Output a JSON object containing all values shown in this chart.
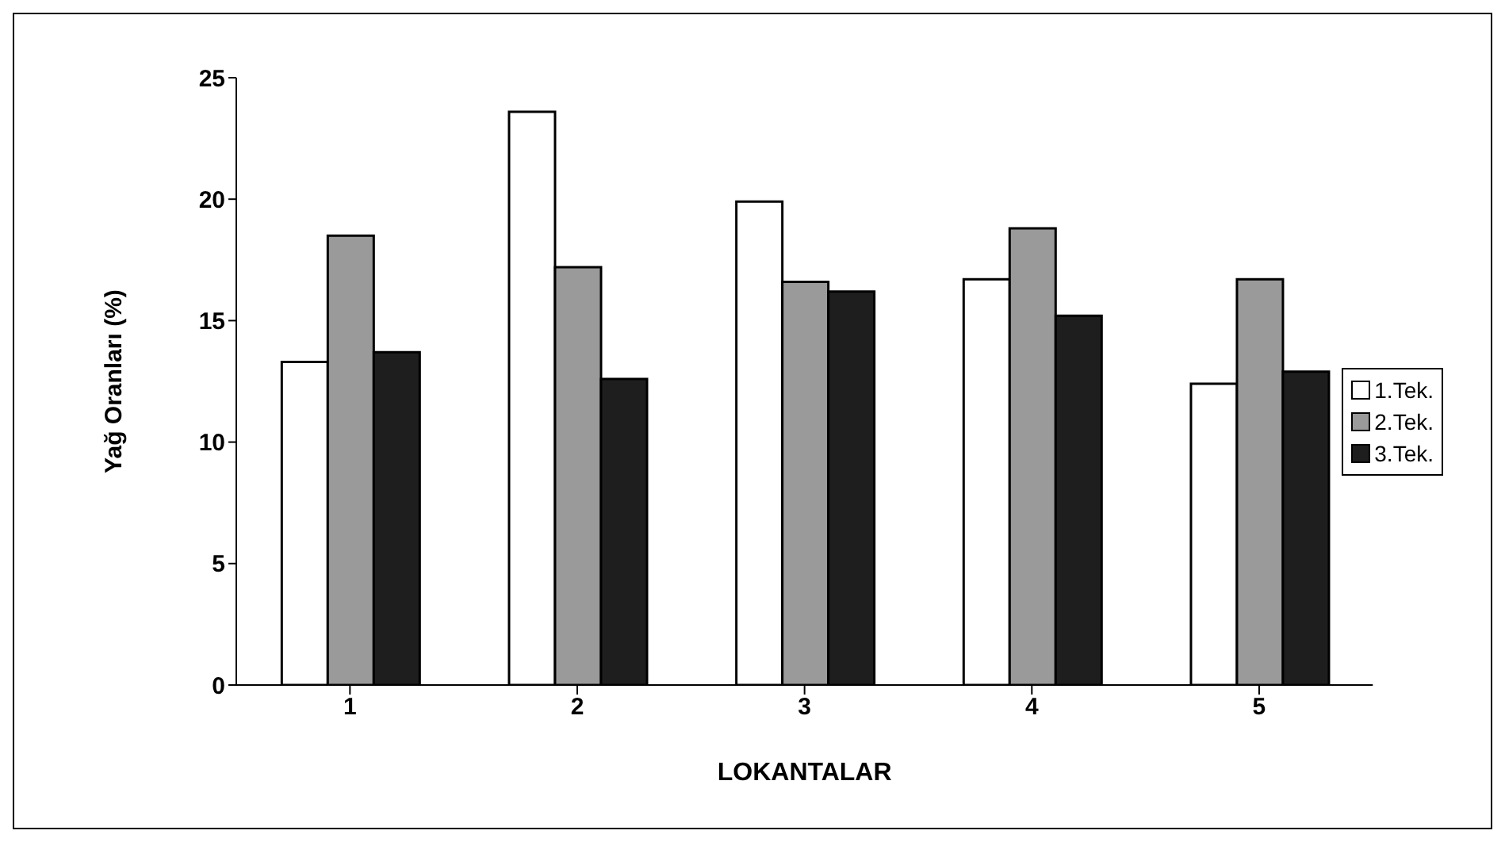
{
  "chart_data": {
    "type": "bar",
    "xlabel": "LOKANTALAR",
    "ylabel": "Yağ Oranları (%)",
    "categories": [
      "1",
      "2",
      "3",
      "4",
      "5"
    ],
    "series": [
      {
        "name": "1.Tek.",
        "color": "#ffffff",
        "values": [
          13.3,
          23.6,
          19.9,
          16.7,
          12.4
        ]
      },
      {
        "name": "2.Tek.",
        "color": "#9a9a9a",
        "values": [
          18.5,
          17.2,
          16.6,
          18.8,
          16.7
        ]
      },
      {
        "name": "3.Tek.",
        "color": "#1e1e1e",
        "values": [
          13.7,
          12.6,
          16.2,
          15.2,
          12.9
        ]
      }
    ],
    "ylim": [
      0,
      25
    ],
    "yticks": [
      0,
      5,
      10,
      15,
      20,
      25
    ],
    "grid": false,
    "legend": "right"
  }
}
